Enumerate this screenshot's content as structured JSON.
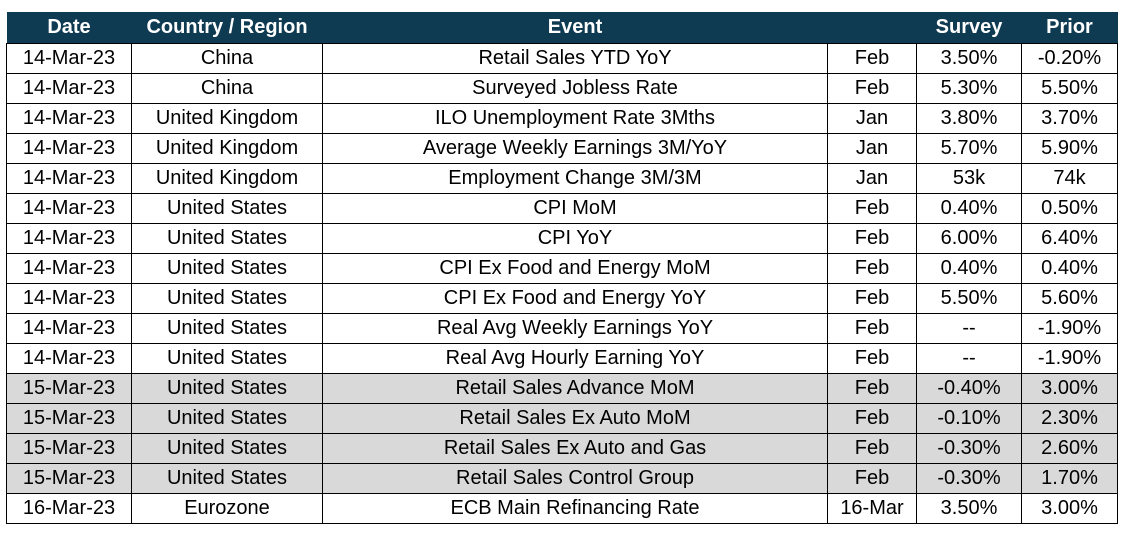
{
  "header": {
    "date": "Date",
    "country": "Country / Region",
    "event": "Event",
    "period": "",
    "survey": "Survey",
    "prior": "Prior"
  },
  "rows": [
    {
      "date": "14-Mar-23",
      "country": "China",
      "event": "Retail Sales YTD YoY",
      "period": "Feb",
      "survey": "3.50%",
      "prior": "-0.20%",
      "shaded": false
    },
    {
      "date": "14-Mar-23",
      "country": "China",
      "event": "Surveyed Jobless Rate",
      "period": "Feb",
      "survey": "5.30%",
      "prior": "5.50%",
      "shaded": false
    },
    {
      "date": "14-Mar-23",
      "country": "United Kingdom",
      "event": "ILO Unemployment Rate 3Mths",
      "period": "Jan",
      "survey": "3.80%",
      "prior": "3.70%",
      "shaded": false
    },
    {
      "date": "14-Mar-23",
      "country": "United Kingdom",
      "event": "Average Weekly Earnings 3M/YoY",
      "period": "Jan",
      "survey": "5.70%",
      "prior": "5.90%",
      "shaded": false
    },
    {
      "date": "14-Mar-23",
      "country": "United Kingdom",
      "event": "Employment Change 3M/3M",
      "period": "Jan",
      "survey": "53k",
      "prior": "74k",
      "shaded": false
    },
    {
      "date": "14-Mar-23",
      "country": "United States",
      "event": "CPI MoM",
      "period": "Feb",
      "survey": "0.40%",
      "prior": "0.50%",
      "shaded": false
    },
    {
      "date": "14-Mar-23",
      "country": "United States",
      "event": "CPI YoY",
      "period": "Feb",
      "survey": "6.00%",
      "prior": "6.40%",
      "shaded": false
    },
    {
      "date": "14-Mar-23",
      "country": "United States",
      "event": "CPI Ex Food and Energy MoM",
      "period": "Feb",
      "survey": "0.40%",
      "prior": "0.40%",
      "shaded": false
    },
    {
      "date": "14-Mar-23",
      "country": "United States",
      "event": "CPI Ex Food and Energy YoY",
      "period": "Feb",
      "survey": "5.50%",
      "prior": "5.60%",
      "shaded": false
    },
    {
      "date": "14-Mar-23",
      "country": "United States",
      "event": "Real Avg Weekly Earnings YoY",
      "period": "Feb",
      "survey": "--",
      "prior": "-1.90%",
      "shaded": false
    },
    {
      "date": "14-Mar-23",
      "country": "United States",
      "event": "Real Avg Hourly Earning YoY",
      "period": "Feb",
      "survey": "--",
      "prior": "-1.90%",
      "shaded": false
    },
    {
      "date": "15-Mar-23",
      "country": "United States",
      "event": "Retail Sales Advance MoM",
      "period": "Feb",
      "survey": "-0.40%",
      "prior": "3.00%",
      "shaded": true
    },
    {
      "date": "15-Mar-23",
      "country": "United States",
      "event": "Retail Sales Ex Auto MoM",
      "period": "Feb",
      "survey": "-0.10%",
      "prior": "2.30%",
      "shaded": true
    },
    {
      "date": "15-Mar-23",
      "country": "United States",
      "event": "Retail Sales Ex Auto and Gas",
      "period": "Feb",
      "survey": "-0.30%",
      "prior": "2.60%",
      "shaded": true
    },
    {
      "date": "15-Mar-23",
      "country": "United States",
      "event": "Retail Sales Control Group",
      "period": "Feb",
      "survey": "-0.30%",
      "prior": "1.70%",
      "shaded": true
    },
    {
      "date": "16-Mar-23",
      "country": "Eurozone",
      "event": "ECB Main Refinancing Rate",
      "period": "16-Mar",
      "survey": "3.50%",
      "prior": "3.00%",
      "shaded": false
    }
  ],
  "colors": {
    "header_bg": "#0e3a52",
    "header_text": "#ffffff",
    "shaded_row": "#d9d9d9"
  }
}
